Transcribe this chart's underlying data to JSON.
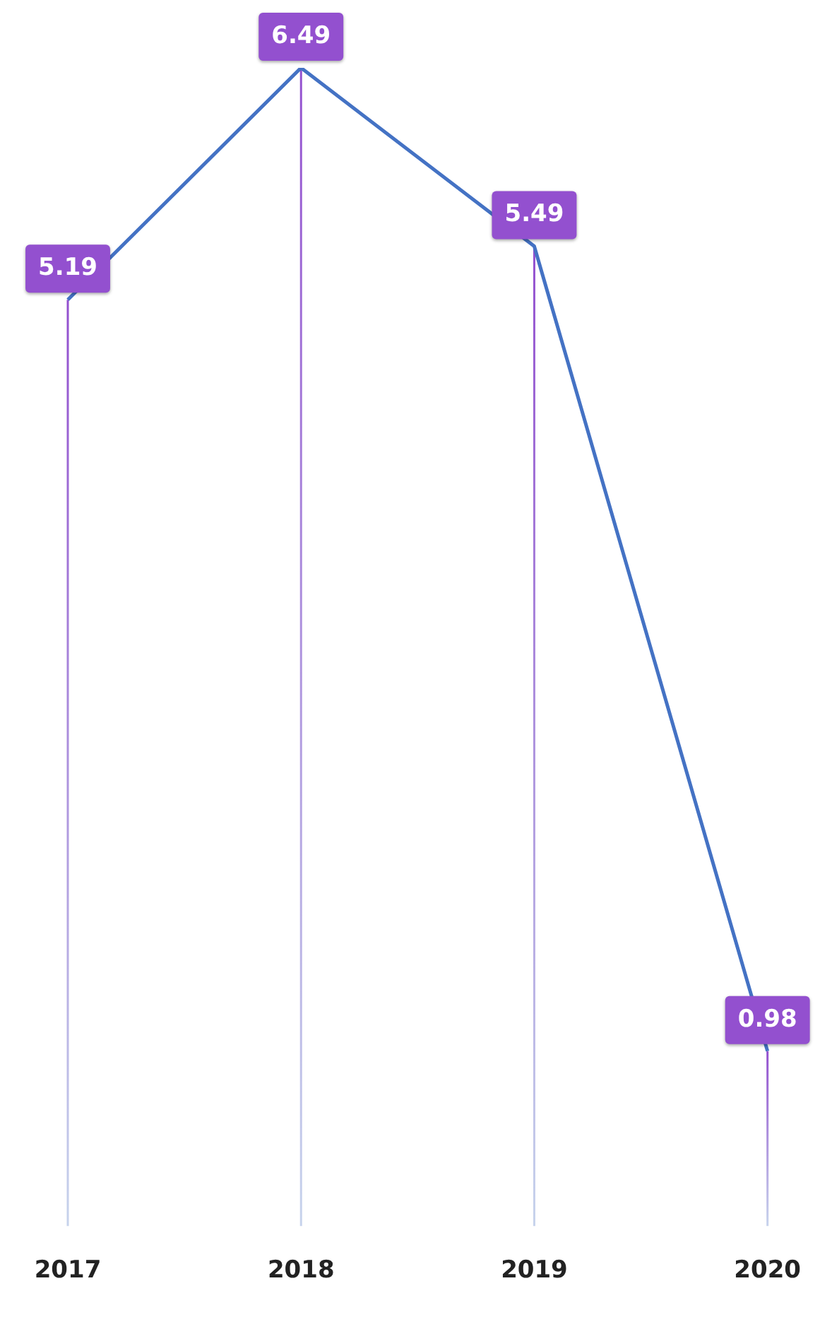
{
  "chart_data": {
    "type": "line",
    "categories": [
      "2017",
      "2018",
      "2019",
      "2020"
    ],
    "series": [
      {
        "color": "#4472c4",
        "values": [
          5.19,
          6.49,
          5.49,
          0.98
        ]
      }
    ],
    "relative": false,
    "data_labels": true,
    "grid": "x",
    "legend": false,
    "line_style": "solid"
  }
}
